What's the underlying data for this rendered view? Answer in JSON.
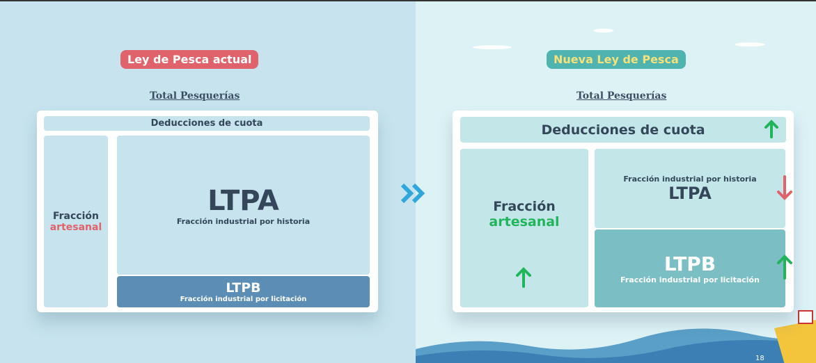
{
  "left": {
    "badge": "Ley de Pesca actual",
    "total": "Total Pesquerías",
    "deducciones": "Deducciones de cuota",
    "artesanal": [
      "Fracción",
      "artesanal"
    ],
    "ltpa": {
      "title": "LTPA",
      "subtitle": "Fracción industrial por historia"
    },
    "ltpb": {
      "title": "LTPB",
      "subtitle": "Fracción industrial por licitación"
    }
  },
  "right": {
    "badge": "Nueva Ley de Pesca",
    "total": "Total Pesquerías",
    "deducciones": "Deducciones de cuota",
    "artesanal": [
      "Fracción",
      "artesanal"
    ],
    "ltpa": {
      "title": "LTPA",
      "subtitle": "Fracción industrial por historia"
    },
    "ltpb": {
      "title": "LTPB",
      "subtitle": "Fracción industrial por licitación"
    }
  },
  "page_number": "18"
}
